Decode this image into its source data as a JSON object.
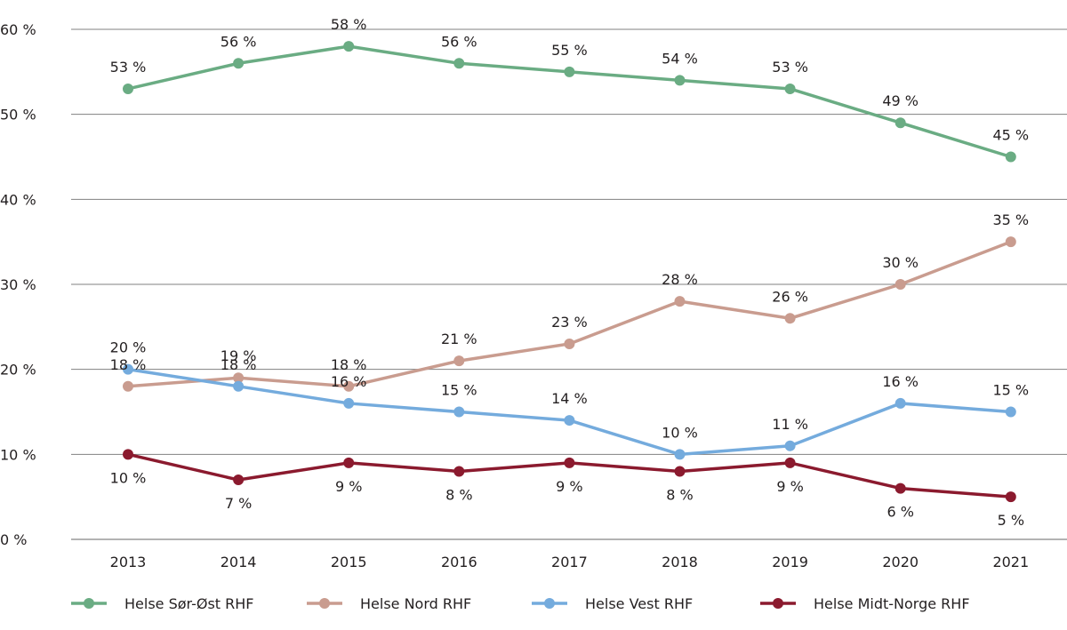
{
  "chart_data": {
    "type": "line",
    "title": "",
    "xlabel": "",
    "ylabel": "",
    "x": [
      "2013",
      "2014",
      "2015",
      "2016",
      "2017",
      "2018",
      "2019",
      "2020",
      "2021"
    ],
    "ylim": [
      0,
      60
    ],
    "yticks": [
      0,
      10,
      20,
      30,
      40,
      50,
      60
    ],
    "ytick_labels": [
      "0 %",
      "10 %",
      "20 %",
      "30 %",
      "40 %",
      "50 %",
      "60 %"
    ],
    "grid": true,
    "legend_position": "bottom",
    "series": [
      {
        "name": "Helse Sør-Øst RHF",
        "color": "#6aac83",
        "values": [
          53,
          56,
          58,
          56,
          55,
          54,
          53,
          49,
          45
        ],
        "labels": [
          "53 %",
          "56 %",
          "58 %",
          "56 %",
          "55 %",
          "54 %",
          "53 %",
          "49 %",
          "45 %"
        ],
        "label_pos": [
          "above",
          "above",
          "above",
          "above",
          "above",
          "above",
          "above",
          "above",
          "above"
        ]
      },
      {
        "name": "Helse Nord RHF",
        "color": "#c99c8f",
        "values": [
          18,
          19,
          18,
          21,
          23,
          28,
          26,
          30,
          35
        ],
        "labels": [
          "18 %",
          "19 %",
          "18 %",
          "21 %",
          "23 %",
          "28 %",
          "26 %",
          "30 %",
          "35 %"
        ],
        "label_pos": [
          "above",
          "above",
          "above",
          "above",
          "above",
          "above",
          "above",
          "above",
          "above"
        ]
      },
      {
        "name": "Helse Vest RHF",
        "color": "#74abdd",
        "values": [
          20,
          18,
          16,
          15,
          14,
          10,
          11,
          16,
          15
        ],
        "labels": [
          "20 %",
          "18 %",
          "16 %",
          "15 %",
          "14 %",
          "10 %",
          "11 %",
          "16 %",
          "15 %"
        ],
        "label_pos": [
          "above",
          "above",
          "above",
          "above",
          "above",
          "above",
          "above",
          "above",
          "above"
        ]
      },
      {
        "name": "Helse Midt-Norge RHF",
        "color": "#8b1a2e",
        "values": [
          10,
          7,
          9,
          8,
          9,
          8,
          9,
          6,
          5
        ],
        "labels": [
          "10 %",
          "7 %",
          "9 %",
          "8 %",
          "9 %",
          "8 %",
          "9 %",
          "6 %",
          "5 %"
        ],
        "label_pos": [
          "below",
          "below",
          "below",
          "below",
          "below",
          "below",
          "below",
          "below",
          "below"
        ]
      }
    ]
  }
}
